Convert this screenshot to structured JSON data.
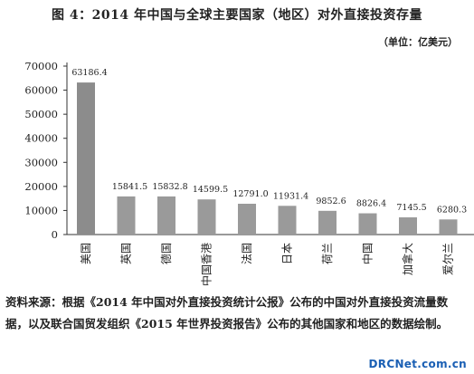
{
  "chart_data": {
    "type": "bar",
    "title": "图 4：2014 年中国与全球主要国家（地区）对外直接投资存量",
    "unit": "（单位：亿美元）",
    "categories": [
      "美国",
      "英国",
      "德国",
      "中国香港",
      "法国",
      "日本",
      "荷兰",
      "中国",
      "加拿大",
      "爱尔兰"
    ],
    "values": [
      63186.4,
      15841.5,
      15832.8,
      14599.5,
      12791.0,
      11931.4,
      9852.6,
      8826.4,
      7145.5,
      6280.3
    ],
    "value_labels": [
      "63186.4",
      "15841.5",
      "15832.8",
      "14599.5",
      "12791.0",
      "11931.4",
      "9852.6",
      "8826.4",
      "7145.5",
      "6280.3"
    ],
    "yticks": [
      0,
      10000,
      20000,
      30000,
      40000,
      50000,
      60000,
      70000
    ],
    "ylim": [
      0,
      70000
    ],
    "grid": false,
    "colors": {
      "first_bar": "#8c8c8c",
      "bars": "#9a9a9a",
      "axis": "#333333"
    }
  },
  "source_note": "资料来源：根据《2014 年中国对外直接投资统计公报》公布的中国对外直接投资流量数据，以及联合国贸发组织《2015 年世界投资报告》公布的其他国家和地区的数据绘制。",
  "watermark": "DRCNet.com.cn"
}
